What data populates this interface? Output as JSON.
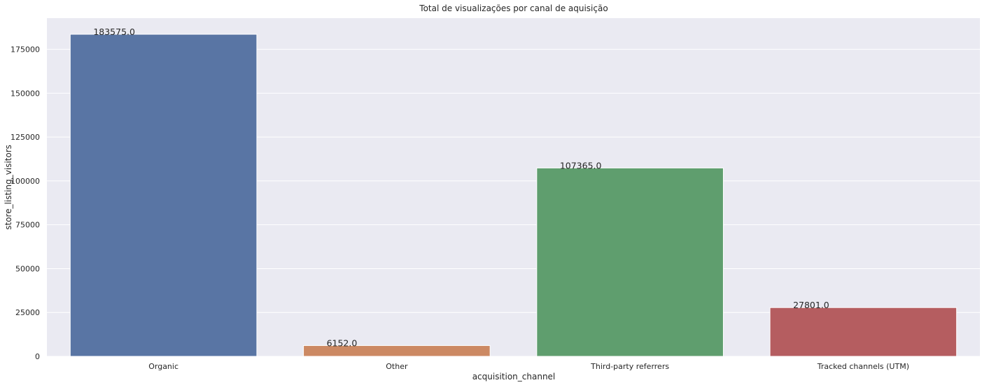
{
  "chart_data": {
    "type": "bar",
    "title": "Total de visualizações por canal de aquisição",
    "xlabel": "acquisition_channel",
    "ylabel": "store_listing_visitors",
    "categories": [
      "Organic",
      "Other",
      "Third-party referrers",
      "Tracked channels (UTM)"
    ],
    "values": [
      183575,
      6152,
      107365,
      27801
    ],
    "value_labels": [
      "183575.0",
      "6152.0",
      "107365.0",
      "27801.0"
    ],
    "colors": [
      "#5975a4",
      "#cc8963",
      "#5f9e6e",
      "#b55d60"
    ],
    "ylim": [
      0,
      192754
    ],
    "yticks": [
      0,
      25000,
      50000,
      75000,
      100000,
      125000,
      150000,
      175000
    ],
    "ytick_labels": [
      "0",
      "25000",
      "50000",
      "75000",
      "100000",
      "125000",
      "150000",
      "175000"
    ],
    "grid": true,
    "background": "#eaeaf2"
  }
}
